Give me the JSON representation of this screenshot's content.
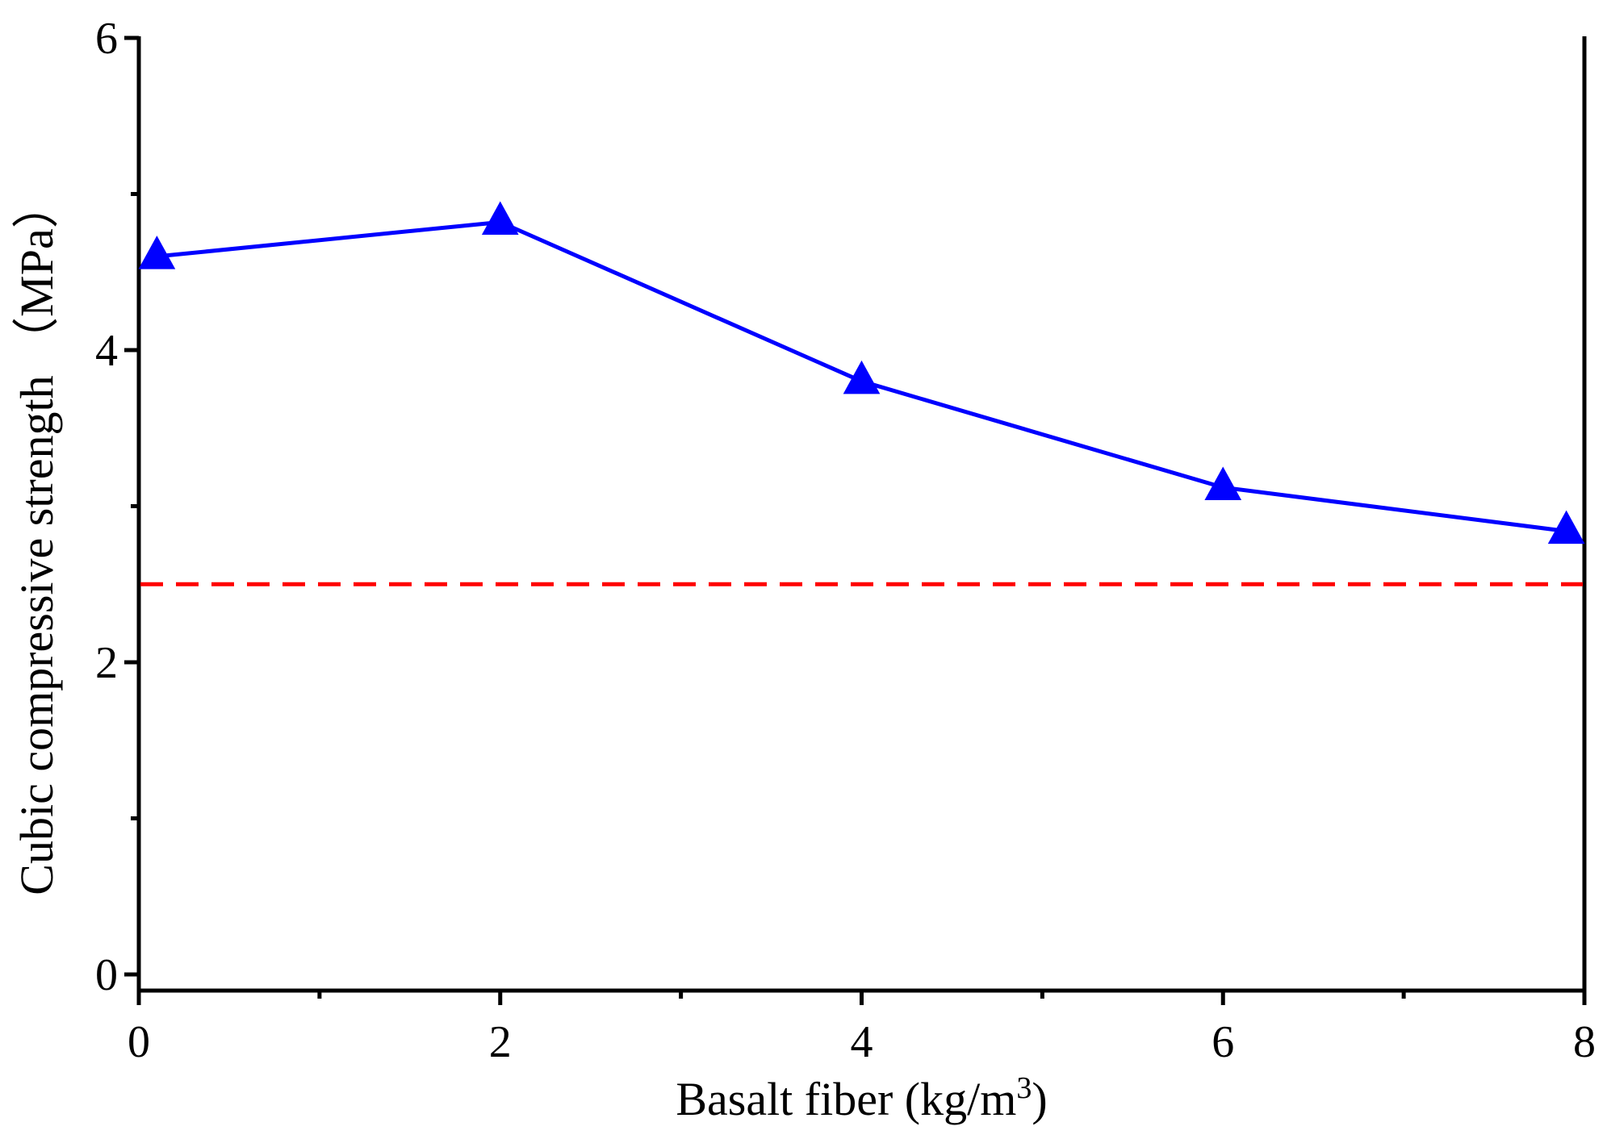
{
  "chart_data": {
    "type": "line",
    "title": "",
    "xlabel": "Basalt fiber (kg/m",
    "xlabel_superscript": "3",
    "xlabel_suffix": ")",
    "ylabel": "Cubic compressive strength （MPa）",
    "xlim": [
      0,
      8
    ],
    "ylim": [
      0,
      6
    ],
    "x_ticks": [
      0,
      2,
      4,
      6,
      8
    ],
    "x_tick_labels": [
      "0",
      "2",
      "4",
      "6",
      "8"
    ],
    "y_ticks": [
      0,
      2,
      4,
      6
    ],
    "y_tick_labels": [
      "0",
      "2",
      "4",
      "6"
    ],
    "grid": false,
    "series": [
      {
        "name": "Cubic compressive strength",
        "x": [
          0.1,
          2,
          4,
          6,
          7.9
        ],
        "y": [
          4.6,
          4.82,
          3.8,
          3.12,
          2.84
        ],
        "color": "#0000ff",
        "marker": "triangle"
      }
    ],
    "reference_line": {
      "y": 2.5,
      "color": "#ff0000",
      "style": "dashed"
    }
  }
}
